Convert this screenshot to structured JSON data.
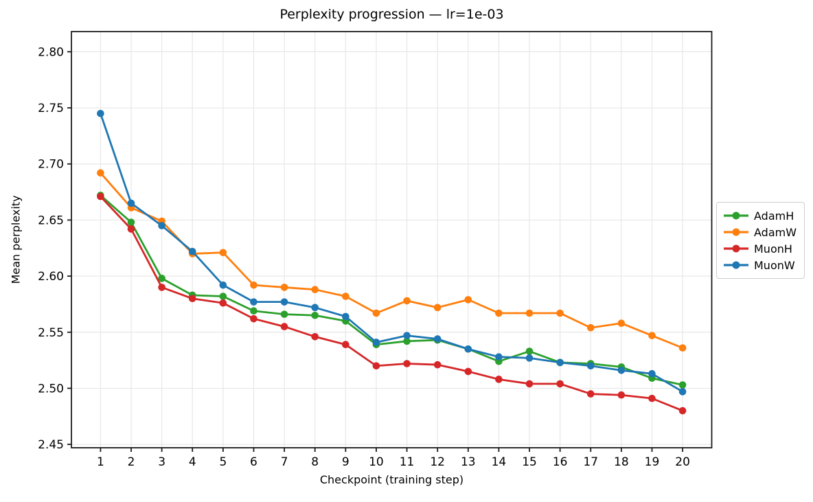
{
  "chart_data": {
    "type": "line",
    "title": "Perplexity progression — lr=1e-03",
    "xlabel": "Checkpoint (training step)",
    "ylabel": "Mean perplexity",
    "x": [
      1,
      2,
      3,
      4,
      5,
      6,
      7,
      8,
      9,
      10,
      11,
      12,
      13,
      14,
      15,
      16,
      17,
      18,
      19,
      20
    ],
    "xticks": [
      1,
      2,
      3,
      4,
      5,
      6,
      7,
      8,
      9,
      10,
      11,
      12,
      13,
      14,
      15,
      16,
      17,
      18,
      19,
      20
    ],
    "yticks": [
      2.45,
      2.5,
      2.55,
      2.6,
      2.65,
      2.7,
      2.75,
      2.8
    ],
    "xlim": [
      0.05,
      20.95
    ],
    "ylim": [
      2.447,
      2.818
    ],
    "grid": true,
    "legend_position": "outside-right",
    "series": [
      {
        "name": "AdamH",
        "color": "#2ca02c",
        "values": [
          2.672,
          2.648,
          2.598,
          2.583,
          2.582,
          2.569,
          2.566,
          2.565,
          2.56,
          2.539,
          2.542,
          2.543,
          2.535,
          2.524,
          2.533,
          2.523,
          2.522,
          2.519,
          2.509,
          2.503
        ]
      },
      {
        "name": "AdamW",
        "color": "#ff7f0e",
        "values": [
          2.692,
          2.661,
          2.649,
          2.62,
          2.621,
          2.592,
          2.59,
          2.588,
          2.582,
          2.567,
          2.578,
          2.572,
          2.579,
          2.567,
          2.567,
          2.567,
          2.554,
          2.558,
          2.547,
          2.536
        ]
      },
      {
        "name": "MuonH",
        "color": "#d62728",
        "values": [
          2.671,
          2.642,
          2.59,
          2.58,
          2.576,
          2.562,
          2.555,
          2.546,
          2.539,
          2.52,
          2.522,
          2.521,
          2.515,
          2.508,
          2.504,
          2.504,
          2.495,
          2.494,
          2.491,
          2.48
        ]
      },
      {
        "name": "MuonW",
        "color": "#1f77b4",
        "values": [
          2.745,
          2.665,
          2.645,
          2.622,
          2.592,
          2.577,
          2.577,
          2.572,
          2.564,
          2.541,
          2.547,
          2.544,
          2.535,
          2.528,
          2.527,
          2.523,
          2.52,
          2.516,
          2.513,
          2.497
        ]
      }
    ]
  },
  "style": {
    "background": "#ffffff",
    "grid_color": "#e7e7e7",
    "spine_color": "#1a1a1a",
    "tick_color": "#1a1a1a",
    "text_color": "#000000",
    "legend_border_color": "#cccccc"
  }
}
